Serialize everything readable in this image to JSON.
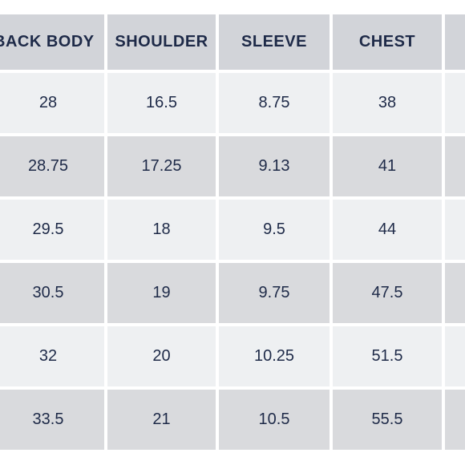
{
  "table": {
    "columns": [
      "BACK BODY",
      "SHOULDER",
      "SLEEVE",
      "CHEST",
      ""
    ],
    "rows": [
      [
        "28",
        "16.5",
        "8.75",
        "38",
        ""
      ],
      [
        "28.75",
        "17.25",
        "9.13",
        "41",
        ""
      ],
      [
        "29.5",
        "18",
        "9.5",
        "44",
        ""
      ],
      [
        "30.5",
        "19",
        "9.75",
        "47.5",
        ""
      ],
      [
        "32",
        "20",
        "10.25",
        "51.5",
        ""
      ],
      [
        "33.5",
        "21",
        "10.5",
        "55.5",
        ""
      ]
    ]
  },
  "colors": {
    "header_bg": "#d2d4d9",
    "row_light_bg": "#eef0f2",
    "row_dark_bg": "#d9dadd",
    "text": "#1e2a48"
  }
}
